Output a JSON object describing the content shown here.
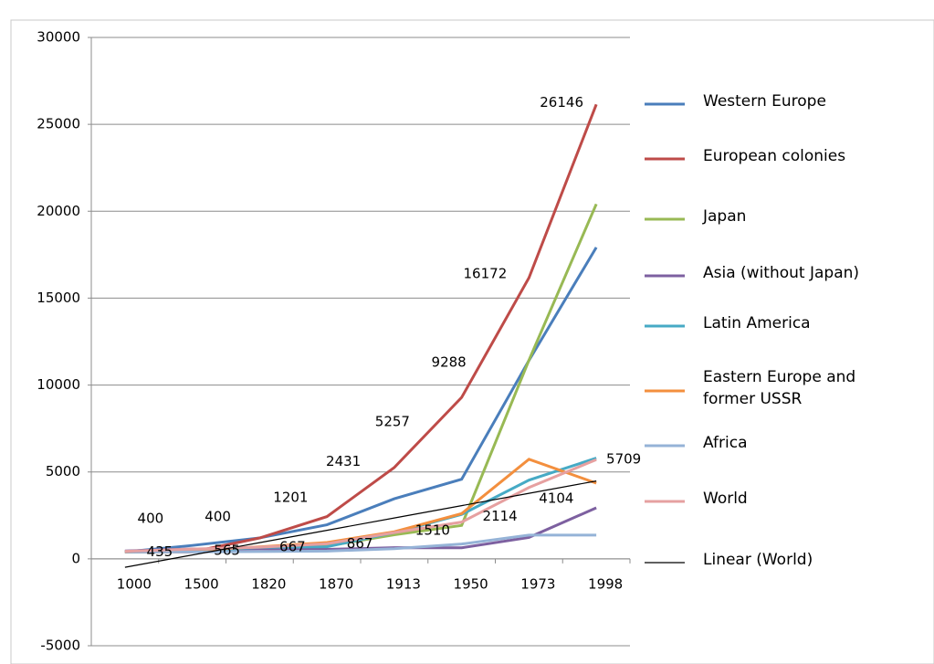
{
  "chart_data": {
    "type": "line",
    "categories": [
      "1000",
      "1500",
      "1820",
      "1870",
      "1913",
      "1950",
      "1973",
      "1998"
    ],
    "ylim": [
      -5000,
      30000
    ],
    "yticks": [
      -5000,
      0,
      5000,
      10000,
      15000,
      20000,
      25000,
      30000
    ],
    "grid": true,
    "legend": "right",
    "series": [
      {
        "name": "Western Europe",
        "color": "#4a7ebb",
        "values": [
          400,
          771,
          1204,
          1960,
          3458,
          4579,
          11416,
          17921
        ]
      },
      {
        "name": "European colonies",
        "color": "#be4b48",
        "values": [
          400,
          400,
          1201,
          2431,
          5257,
          9288,
          16172,
          26146
        ]
      },
      {
        "name": "Japan",
        "color": "#98b954",
        "values": [
          425,
          500,
          669,
          737,
          1387,
          1921,
          11434,
          20413
        ]
      },
      {
        "name": "Asia (without Japan)",
        "color": "#7d60a0",
        "values": [
          450,
          572,
          575,
          543,
          640,
          635,
          1231,
          2936
        ]
      },
      {
        "name": "Latin  America",
        "color": "#46aac5",
        "values": [
          400,
          416,
          665,
          698,
          1511,
          2554,
          4531,
          5795
        ]
      },
      {
        "name": "Eastern Europe and former USSR",
        "color": "#f38f3e",
        "values": [
          400,
          498,
          686,
          941,
          1558,
          2602,
          5731,
          4354
        ]
      },
      {
        "name": "Africa",
        "color": "#95b3d7",
        "values": [
          416,
          400,
          418,
          444,
          585,
          852,
          1365,
          1368
        ]
      },
      {
        "name": "World",
        "color": "#e6a0a0",
        "values": [
          435,
          565,
          667,
          867,
          1510,
          2114,
          4104,
          5709
        ]
      },
      {
        "name": "Linear  (World)",
        "color": "#000000",
        "values": [
          -487,
          222,
          932,
          1641,
          2351,
          3060,
          3770,
          4480
        ]
      }
    ]
  }
}
